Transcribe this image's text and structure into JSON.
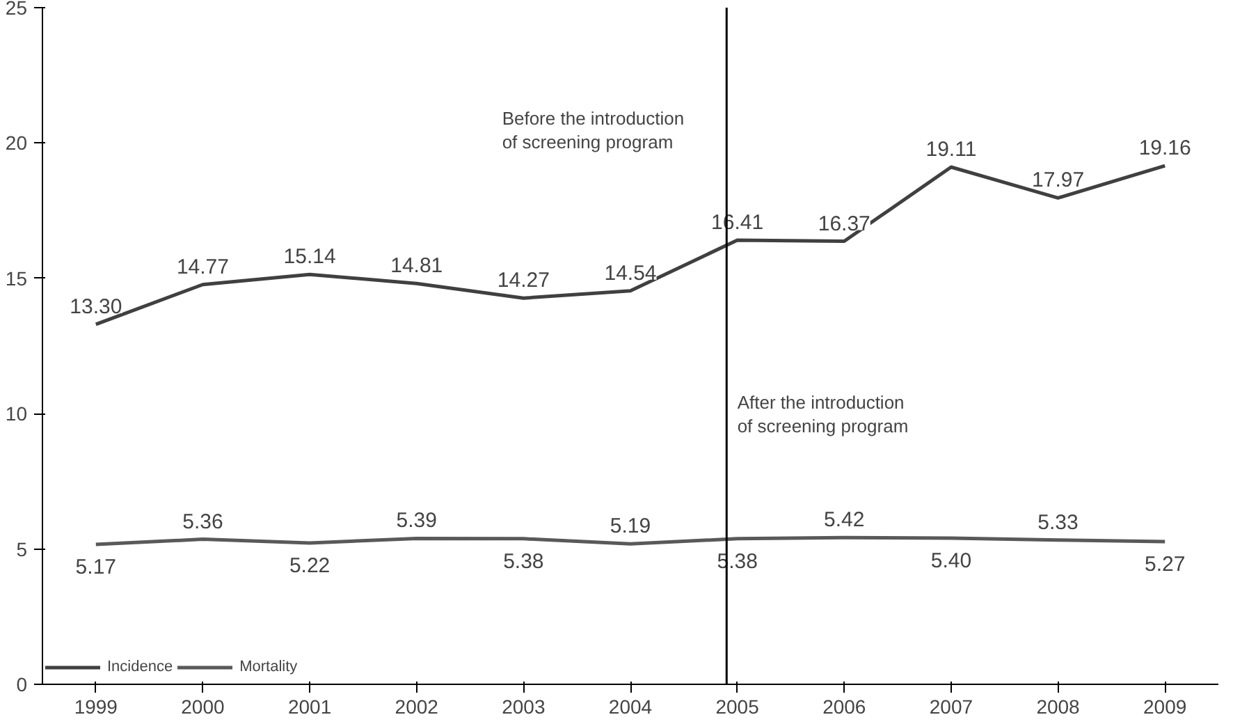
{
  "chart_data": {
    "type": "line",
    "x": [
      1999,
      2000,
      2001,
      2002,
      2003,
      2004,
      2005,
      2006,
      2007,
      2008,
      2009
    ],
    "xlim": [
      1998.5,
      2009.5
    ],
    "xticks": [
      1999,
      2000,
      2001,
      2002,
      2003,
      2004,
      2005,
      2006,
      2007,
      2008,
      2009
    ],
    "ylim": [
      0,
      25
    ],
    "yticks": [
      0,
      5,
      10,
      15,
      20,
      25
    ],
    "series": [
      {
        "name": "Incidence",
        "color": "#404040",
        "values": [
          13.3,
          14.77,
          15.14,
          14.81,
          14.27,
          14.54,
          16.41,
          16.37,
          19.11,
          17.97,
          19.16
        ],
        "value_labels": [
          "13.30",
          "14.77",
          "15.14",
          "14.81",
          "14.27",
          "14.54",
          "16.41",
          "16.37",
          "19.11",
          "17.97",
          "19.16"
        ]
      },
      {
        "name": "Mortality",
        "color": "#595959",
        "values": [
          5.17,
          5.36,
          5.22,
          5.39,
          5.38,
          5.19,
          5.38,
          5.42,
          5.4,
          5.33,
          5.27
        ],
        "value_labels": [
          "5.17",
          "5.36",
          "5.22",
          "5.39",
          "5.38",
          "5.19",
          "5.38",
          "5.42",
          "5.40",
          "5.33",
          "5.27"
        ]
      }
    ],
    "ref_lines": [
      {
        "axis": "x",
        "value": 2004.9,
        "color": "#000000"
      }
    ],
    "annotations": [
      "Before the introduction\nof screening program",
      "After the introduction\nof screening program"
    ],
    "grid": false,
    "legend": "bottom",
    "marker": "none",
    "line_style": "solid"
  }
}
